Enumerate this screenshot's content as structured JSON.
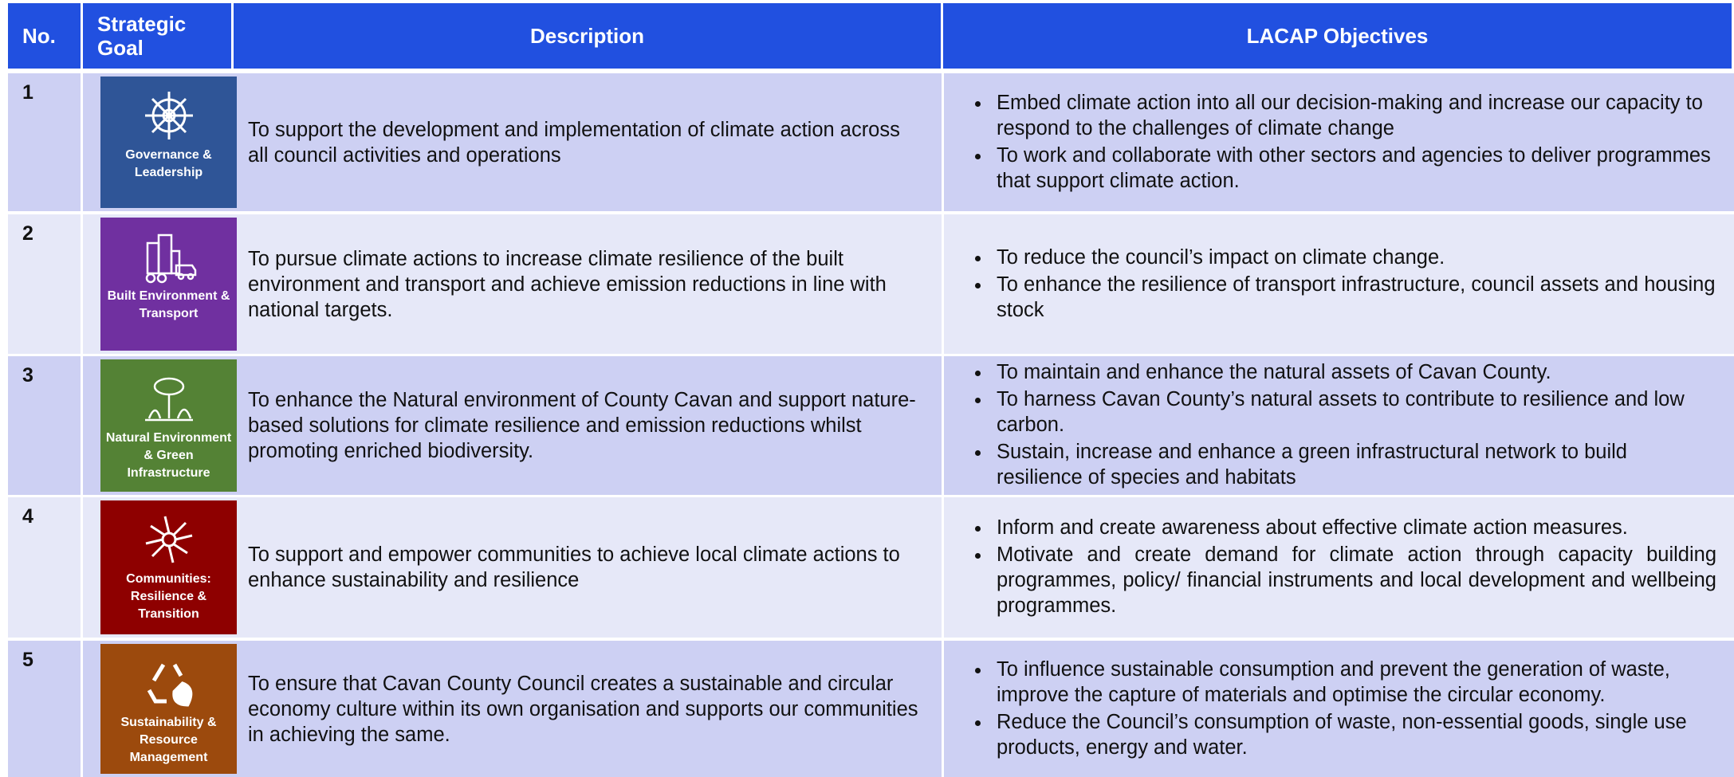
{
  "table": {
    "header": [
      "No.",
      "Strategic Goal",
      "Description",
      "LACAP Objectives"
    ],
    "rows": [
      {
        "no": "1",
        "goal": "Governance & Leadership",
        "description": "To support the development and implementation of climate action across all council activities and operations",
        "objectives": [
          "Embed climate action into all our decision-making and increase our capacity to respond to the challenges of climate change",
          "To work and collaborate with other sectors and agencies to deliver programmes that support climate action."
        ]
      },
      {
        "no": "2",
        "goal": "Built Environment & Transport",
        "description": "To pursue climate actions to increase climate resilience of the built environment and transport and achieve emission reductions in line with national targets.",
        "objectives": [
          "To reduce the council’s impact on climate change.",
          "To enhance the resilience of transport infrastructure, council assets and housing stock"
        ]
      },
      {
        "no": "3",
        "goal": "Natural Environment & Green Infrastructure",
        "description": "To enhance the Natural environment of County Cavan and support nature-based solutions for climate resilience and emission reductions whilst promoting enriched biodiversity.",
        "objectives": [
          "To maintain and enhance the natural assets of Cavan County.",
          "To harness Cavan County’s natural assets to contribute to resilience and low carbon.",
          "Sustain, increase and enhance a green infrastructural network to build resilience of species and habitats"
        ]
      },
      {
        "no": "4",
        "goal": "Communities: Resilience & Transition",
        "description": "To support and empower communities to achieve local climate actions to enhance sustainability and resilience",
        "objectives": [
          "Inform and create awareness about effective climate action measures.",
          "Motivate and create demand for climate action through capacity building programmes, policy/ financial instruments and local development and wellbeing programmes."
        ]
      },
      {
        "no": "5",
        "goal": "Sustainability & Resource Management",
        "description": "To ensure that Cavan County Council creates a sustainable and circular economy culture within its own organisation and supports our communities in achieving the same.",
        "objectives": [
          "To influence sustainable consumption and prevent the generation of waste, improve the capture of materials and optimise the circular economy.",
          "Reduce the Council’s consumption of waste, non-essential goods, single use products, energy and water."
        ]
      }
    ]
  }
}
